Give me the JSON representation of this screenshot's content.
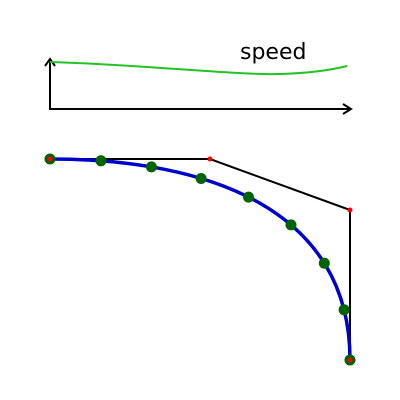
{
  "speed_graph": {
    "label": "speed",
    "curve_color": "#22c322"
  },
  "bezier": {
    "curve_color": "#0000cc",
    "control_polygon_color": "#000000",
    "control_point_color": "#ff0000",
    "sample_point_color": "#006400",
    "sample_point_count": 9
  }
}
